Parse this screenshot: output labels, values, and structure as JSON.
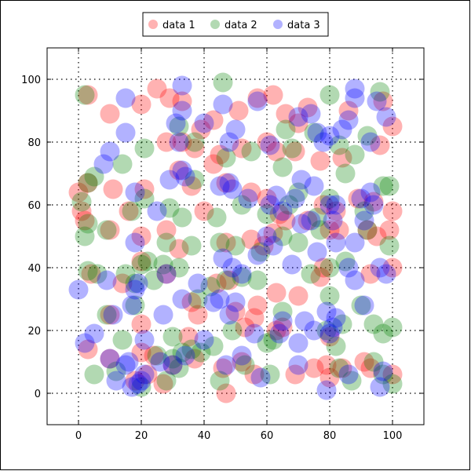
{
  "chart_data": {
    "type": "scatter",
    "title": "",
    "xlabel": "",
    "ylabel": "",
    "xlim": [
      -10,
      110
    ],
    "ylim": [
      -10,
      110
    ],
    "xticks": [
      "0",
      "20",
      "40",
      "60",
      "80",
      "100"
    ],
    "yticks": [
      "0",
      "20",
      "40",
      "60",
      "80",
      "100"
    ],
    "grid": true,
    "legend_position": "top-center outside",
    "series": [
      {
        "name": "data 1",
        "color": "#ff0000",
        "points": [
          [
            3,
            95
          ],
          [
            10,
            89
          ],
          [
            20,
            92
          ],
          [
            25,
            97
          ],
          [
            29,
            94
          ],
          [
            33,
            93
          ],
          [
            39,
            84
          ],
          [
            43,
            87
          ],
          [
            51,
            90
          ],
          [
            57,
            94
          ],
          [
            62,
            95
          ],
          [
            66,
            89
          ],
          [
            70,
            86
          ],
          [
            73,
            91
          ],
          [
            86,
            90
          ],
          [
            97,
            93
          ],
          [
            100,
            85
          ],
          [
            28,
            80
          ],
          [
            33,
            80
          ],
          [
            37,
            78
          ],
          [
            45,
            76
          ],
          [
            52,
            78
          ],
          [
            60,
            80
          ],
          [
            63,
            77
          ],
          [
            69,
            77
          ],
          [
            77,
            74
          ],
          [
            84,
            75
          ],
          [
            96,
            79
          ],
          [
            0,
            64
          ],
          [
            3,
            67
          ],
          [
            11,
            65
          ],
          [
            21,
            65
          ],
          [
            32,
            71
          ],
          [
            36,
            66
          ],
          [
            40,
            58
          ],
          [
            43,
            73
          ],
          [
            47,
            67
          ],
          [
            55,
            64
          ],
          [
            60,
            62
          ],
          [
            64,
            57
          ],
          [
            73,
            55
          ],
          [
            78,
            60
          ],
          [
            82,
            58
          ],
          [
            89,
            62
          ],
          [
            94,
            61
          ],
          [
            100,
            58
          ],
          [
            1,
            58
          ],
          [
            2,
            55
          ],
          [
            10,
            52
          ],
          [
            16,
            58
          ],
          [
            20,
            50
          ],
          [
            28,
            52
          ],
          [
            32,
            46
          ],
          [
            47,
            48
          ],
          [
            55,
            49
          ],
          [
            59,
            47
          ],
          [
            62,
            51
          ],
          [
            66,
            55
          ],
          [
            80,
            52
          ],
          [
            83,
            52
          ],
          [
            92,
            52
          ],
          [
            95,
            50
          ],
          [
            99,
            52
          ],
          [
            4,
            38
          ],
          [
            14,
            35
          ],
          [
            20,
            42
          ],
          [
            28,
            38
          ],
          [
            36,
            29
          ],
          [
            44,
            35
          ],
          [
            48,
            36
          ],
          [
            57,
            28
          ],
          [
            63,
            32
          ],
          [
            70,
            31
          ],
          [
            77,
            37
          ],
          [
            78,
            40
          ],
          [
            93,
            38
          ],
          [
            100,
            40
          ],
          [
            10,
            25
          ],
          [
            20,
            22
          ],
          [
            35,
            18
          ],
          [
            38,
            25
          ],
          [
            50,
            26
          ],
          [
            53,
            21
          ],
          [
            56,
            24
          ],
          [
            63,
            20
          ],
          [
            65,
            21
          ],
          [
            80,
            18
          ],
          [
            3,
            14
          ],
          [
            10,
            11
          ],
          [
            20,
            13
          ],
          [
            24,
            12
          ],
          [
            30,
            9
          ],
          [
            37,
            11
          ],
          [
            46,
            8
          ],
          [
            52,
            10
          ],
          [
            69,
            6
          ],
          [
            75,
            8
          ],
          [
            80,
            5
          ],
          [
            84,
            8
          ],
          [
            91,
            10
          ],
          [
            93,
            8
          ],
          [
            100,
            6
          ],
          [
            18,
            4
          ],
          [
            22,
            6
          ],
          [
            27,
            3
          ],
          [
            47,
            0
          ],
          [
            56,
            6
          ],
          [
            79,
            9
          ]
        ]
      },
      {
        "name": "data 2",
        "color": "#008000",
        "points": [
          [
            2,
            95
          ],
          [
            46,
            99
          ],
          [
            80,
            95
          ],
          [
            96,
            96
          ],
          [
            21,
            78
          ],
          [
            32,
            85
          ],
          [
            37,
            80
          ],
          [
            47,
            75
          ],
          [
            55,
            77
          ],
          [
            66,
            84
          ],
          [
            68,
            78
          ],
          [
            75,
            83
          ],
          [
            83,
            79
          ],
          [
            88,
            76
          ],
          [
            92,
            82
          ],
          [
            1,
            61
          ],
          [
            3,
            67
          ],
          [
            5,
            69
          ],
          [
            14,
            73
          ],
          [
            21,
            62
          ],
          [
            29,
            59
          ],
          [
            33,
            56
          ],
          [
            37,
            68
          ],
          [
            44,
            56
          ],
          [
            52,
            60
          ],
          [
            60,
            57
          ],
          [
            65,
            72
          ],
          [
            67,
            60
          ],
          [
            70,
            64
          ],
          [
            76,
            56
          ],
          [
            80,
            62
          ],
          [
            85,
            70
          ],
          [
            91,
            58
          ],
          [
            97,
            66
          ],
          [
            99,
            66
          ],
          [
            2,
            50
          ],
          [
            3,
            54
          ],
          [
            9,
            52
          ],
          [
            17,
            58
          ],
          [
            22,
            42
          ],
          [
            27,
            41
          ],
          [
            28,
            48
          ],
          [
            36,
            47
          ],
          [
            45,
            48
          ],
          [
            50,
            47
          ],
          [
            58,
            45
          ],
          [
            65,
            50
          ],
          [
            70,
            48
          ],
          [
            77,
            52
          ],
          [
            80,
            40
          ],
          [
            85,
            42
          ],
          [
            92,
            52
          ],
          [
            99,
            47
          ],
          [
            3,
            39
          ],
          [
            6,
            38
          ],
          [
            15,
            38
          ],
          [
            18,
            35
          ],
          [
            20,
            41
          ],
          [
            24,
            36
          ],
          [
            32,
            40
          ],
          [
            38,
            30
          ],
          [
            42,
            34
          ],
          [
            47,
            36
          ],
          [
            52,
            37
          ],
          [
            57,
            36
          ],
          [
            65,
            26
          ],
          [
            74,
            38
          ],
          [
            80,
            31
          ],
          [
            84,
            22
          ],
          [
            90,
            28
          ],
          [
            94,
            22
          ],
          [
            97,
            19
          ],
          [
            100,
            21
          ],
          [
            9,
            25
          ],
          [
            14,
            17
          ],
          [
            18,
            28
          ],
          [
            30,
            18
          ],
          [
            33,
            13
          ],
          [
            36,
            14
          ],
          [
            43,
            15
          ],
          [
            49,
            20
          ],
          [
            53,
            9
          ],
          [
            60,
            16
          ],
          [
            62,
            17
          ],
          [
            79,
            20
          ],
          [
            82,
            15
          ],
          [
            5,
            6
          ],
          [
            12,
            7
          ],
          [
            20,
            2
          ],
          [
            25,
            12
          ],
          [
            28,
            4
          ],
          [
            30,
            11
          ],
          [
            32,
            8
          ],
          [
            39,
            13
          ],
          [
            45,
            4
          ],
          [
            61,
            6
          ],
          [
            83,
            8
          ],
          [
            87,
            4
          ],
          [
            94,
            10
          ],
          [
            97,
            6
          ],
          [
            100,
            3
          ]
        ]
      },
      {
        "name": "data 3",
        "color": "#0000ff",
        "points": [
          [
            8,
            73
          ],
          [
            10,
            77
          ],
          [
            15,
            94
          ],
          [
            15,
            83
          ],
          [
            31,
            86
          ],
          [
            32,
            80
          ],
          [
            33,
            90
          ],
          [
            33,
            98
          ],
          [
            40,
            86
          ],
          [
            46,
            92
          ],
          [
            48,
            80
          ],
          [
            50,
            84
          ],
          [
            57,
            93
          ],
          [
            61,
            79
          ],
          [
            70,
            88
          ],
          [
            74,
            89
          ],
          [
            76,
            83
          ],
          [
            78,
            80
          ],
          [
            80,
            82
          ],
          [
            84,
            84
          ],
          [
            86,
            87
          ],
          [
            88,
            94
          ],
          [
            88,
            97
          ],
          [
            93,
            80
          ],
          [
            95,
            93
          ],
          [
            98,
            88
          ],
          [
            18,
            64
          ],
          [
            25,
            58
          ],
          [
            29,
            68
          ],
          [
            33,
            71
          ],
          [
            34,
            69
          ],
          [
            45,
            66
          ],
          [
            48,
            67
          ],
          [
            49,
            65
          ],
          [
            54,
            62
          ],
          [
            61,
            60
          ],
          [
            63,
            63
          ],
          [
            65,
            58
          ],
          [
            69,
            62
          ],
          [
            71,
            68
          ],
          [
            75,
            66
          ],
          [
            81,
            55
          ],
          [
            82,
            60
          ],
          [
            88,
            48
          ],
          [
            90,
            62
          ],
          [
            91,
            55
          ],
          [
            93,
            64
          ],
          [
            94,
            60
          ],
          [
            18,
            48
          ],
          [
            28,
            38
          ],
          [
            33,
            30
          ],
          [
            38,
            35
          ],
          [
            45,
            30
          ],
          [
            46,
            43
          ],
          [
            49,
            40
          ],
          [
            52,
            38
          ],
          [
            57,
            44
          ],
          [
            60,
            50
          ],
          [
            62,
            47
          ],
          [
            68,
            41
          ],
          [
            71,
            54
          ],
          [
            74,
            55
          ],
          [
            76,
            45
          ],
          [
            80,
            60
          ],
          [
            82,
            48
          ],
          [
            86,
            40
          ],
          [
            88,
            36
          ],
          [
            91,
            28
          ],
          [
            96,
            40
          ],
          [
            98,
            38
          ],
          [
            0,
            33
          ],
          [
            2,
            16
          ],
          [
            5,
            19
          ],
          [
            9,
            36
          ],
          [
            11,
            25
          ],
          [
            17,
            28
          ],
          [
            18,
            33
          ],
          [
            19,
            35
          ],
          [
            21,
            17
          ],
          [
            27,
            25
          ],
          [
            34,
            12
          ],
          [
            40,
            17
          ],
          [
            43,
            29
          ],
          [
            48,
            25
          ],
          [
            50,
            29
          ],
          [
            56,
            19
          ],
          [
            64,
            19
          ],
          [
            65,
            23
          ],
          [
            70,
            16
          ],
          [
            72,
            23
          ],
          [
            75,
            20
          ],
          [
            79,
            26
          ],
          [
            80,
            19
          ],
          [
            81,
            21
          ],
          [
            82,
            24
          ],
          [
            10,
            11
          ],
          [
            12,
            4
          ],
          [
            15,
            9
          ],
          [
            16,
            10
          ],
          [
            17,
            2
          ],
          [
            19,
            3
          ],
          [
            20,
            4
          ],
          [
            21,
            6
          ],
          [
            26,
            10
          ],
          [
            30,
            9
          ],
          [
            47,
            9
          ],
          [
            52,
            12
          ],
          [
            58,
            5
          ],
          [
            70,
            9
          ],
          [
            79,
            1
          ],
          [
            86,
            6
          ],
          [
            96,
            2
          ],
          [
            97,
            7
          ]
        ]
      }
    ]
  }
}
